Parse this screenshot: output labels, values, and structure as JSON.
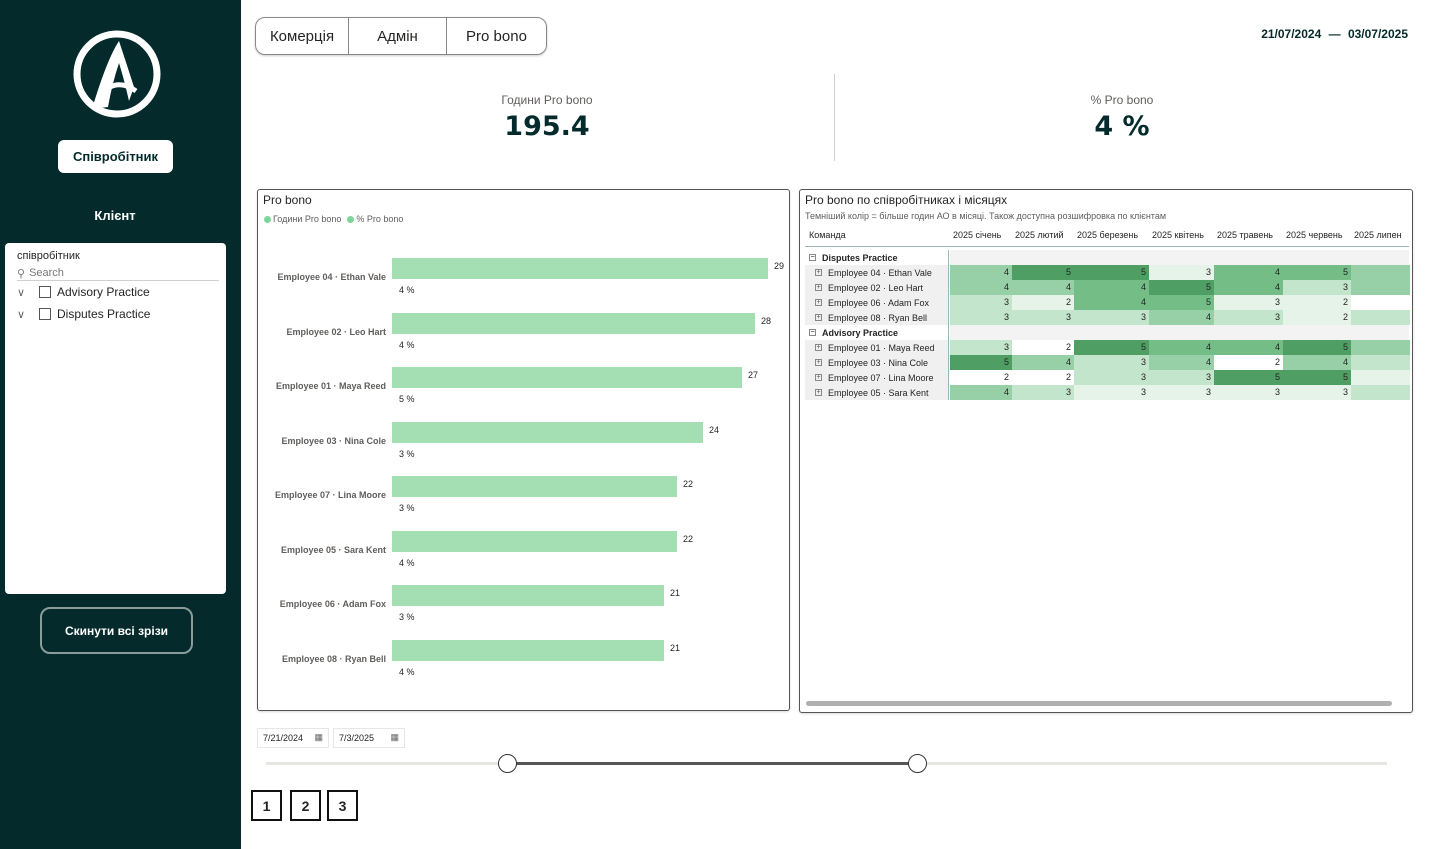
{
  "sidebar": {
    "employee_button": "Співробітник",
    "client_label": "Клієнт",
    "slicer": {
      "title": "співробітник",
      "search_placeholder": "Search",
      "items": [
        {
          "label": "Advisory Practice"
        },
        {
          "label": "Disputes Practice"
        }
      ]
    },
    "reset_button": "Скинути всі зрізи"
  },
  "tabs": [
    {
      "label": "Комерція"
    },
    {
      "label": "Адмін"
    },
    {
      "label": "Pro bono"
    }
  ],
  "date_range": {
    "start": "21/07/2024",
    "sep": "—",
    "end": "03/07/2025"
  },
  "kpis": [
    {
      "label": "Години Pro bono",
      "value": "195.4"
    },
    {
      "label": "% Pro bono",
      "value": "4 %"
    }
  ],
  "bar_chart": {
    "title": "Pro bono",
    "legend": [
      "Години Pro bono",
      "% Pro bono"
    ],
    "colors": {
      "bar": "#a4dfb3",
      "legend_dot": "#7fd49a"
    }
  },
  "chart_data": {
    "type": "bar",
    "title": "Pro bono",
    "orientation": "horizontal",
    "categories": [
      "Employee 04 · Ethan Vale",
      "Employee 02 · Leo Hart",
      "Employee 01 · Maya Reed",
      "Employee 03 · Nina Cole",
      "Employee 07 · Lina Moore",
      "Employee 05 · Sara Kent",
      "Employee 06 · Adam Fox",
      "Employee 08 · Ryan Bell"
    ],
    "series": [
      {
        "name": "Години Pro bono",
        "values": [
          29,
          28,
          27,
          24,
          22,
          22,
          21,
          21
        ]
      },
      {
        "name": "% Pro bono",
        "values": [
          "4 %",
          "4 %",
          "5 %",
          "3 %",
          "3 %",
          "4 %",
          "3 %",
          "4 %"
        ]
      }
    ],
    "xlim": [
      0,
      29
    ]
  },
  "matrix": {
    "title": "Pro bono по співробітниках і місяцях",
    "subtitle": "Темніший колір = більше годин АО в місяці. Також доступна розшифровка по клієнтам",
    "row_header": "Команда",
    "columns": [
      "2025 січень",
      "2025 лютий",
      "2025 березень",
      "2025 квітень",
      "2025 травень",
      "2025 червень",
      "2025 липен"
    ],
    "groups": [
      {
        "name": "Disputes Practice",
        "rows": [
          {
            "name": "Employee 04 · Ethan Vale",
            "values": [
              "4",
              "5",
              "5",
              "3",
              "4",
              "5",
              ""
            ],
            "shades": [
              3,
              5,
              5,
              1,
              4,
              4,
              3
            ]
          },
          {
            "name": "Employee 02 · Leo Hart",
            "values": [
              "4",
              "4",
              "4",
              "5",
              "4",
              "3",
              ""
            ],
            "shades": [
              3,
              3,
              4,
              5,
              4,
              2,
              3
            ]
          },
          {
            "name": "Employee 06 · Adam Fox",
            "values": [
              "3",
              "2",
              "4",
              "5",
              "3",
              "2",
              ""
            ],
            "shades": [
              2,
              1,
              4,
              4,
              1,
              1,
              0
            ]
          },
          {
            "name": "Employee 08 · Ryan Bell",
            "values": [
              "3",
              "3",
              "3",
              "4",
              "3",
              "2",
              ""
            ],
            "shades": [
              2,
              2,
              2,
              3,
              2,
              1,
              2
            ]
          }
        ]
      },
      {
        "name": "Advisory Practice",
        "rows": [
          {
            "name": "Employee 01 · Maya Reed",
            "values": [
              "3",
              "2",
              "5",
              "4",
              "4",
              "5",
              ""
            ],
            "shades": [
              2,
              0,
              5,
              4,
              4,
              5,
              3
            ]
          },
          {
            "name": "Employee 03 · Nina Cole",
            "values": [
              "5",
              "4",
              "3",
              "4",
              "2",
              "4",
              ""
            ],
            "shades": [
              5,
              3,
              2,
              3,
              0,
              3,
              2
            ]
          },
          {
            "name": "Employee 07 · Lina Moore",
            "values": [
              "2",
              "2",
              "3",
              "3",
              "5",
              "5",
              ""
            ],
            "shades": [
              0,
              0,
              2,
              2,
              5,
              5,
              1
            ]
          },
          {
            "name": "Employee 05 · Sara Kent",
            "values": [
              "4",
              "3",
              "3",
              "3",
              "3",
              "3",
              ""
            ],
            "shades": [
              3,
              2,
              1,
              1,
              1,
              1,
              2
            ]
          }
        ]
      }
    ],
    "palette": [
      "#ffffff",
      "#e5f3e8",
      "#c3e5cb",
      "#97d0a6",
      "#74bd86",
      "#4f9e63"
    ]
  },
  "date_slider": {
    "start": "7/21/2024",
    "end": "7/3/2025",
    "range_fraction": [
      0.216,
      0.582
    ]
  },
  "pages": [
    "1",
    "2",
    "3"
  ]
}
